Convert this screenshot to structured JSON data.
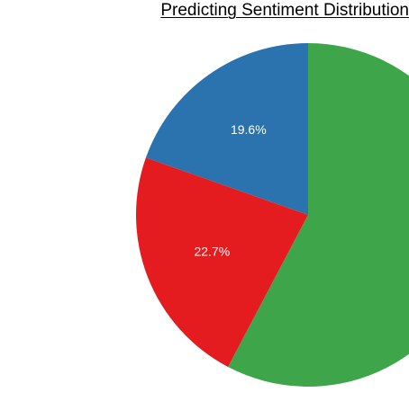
{
  "chart_data": {
    "type": "pie",
    "title": "Predicting Sentiment Distribution",
    "slices": [
      {
        "value": 19.6,
        "label": "19.6%",
        "color": "#2b73af"
      },
      {
        "value": 22.7,
        "label": "22.7%",
        "color": "#e41c1f"
      },
      {
        "value": 57.7,
        "label": "",
        "color": "#3fa54a"
      }
    ],
    "start_angle_deg": 0,
    "direction": "counterclockwise",
    "label_color": "#ffffff",
    "legend": "none"
  }
}
